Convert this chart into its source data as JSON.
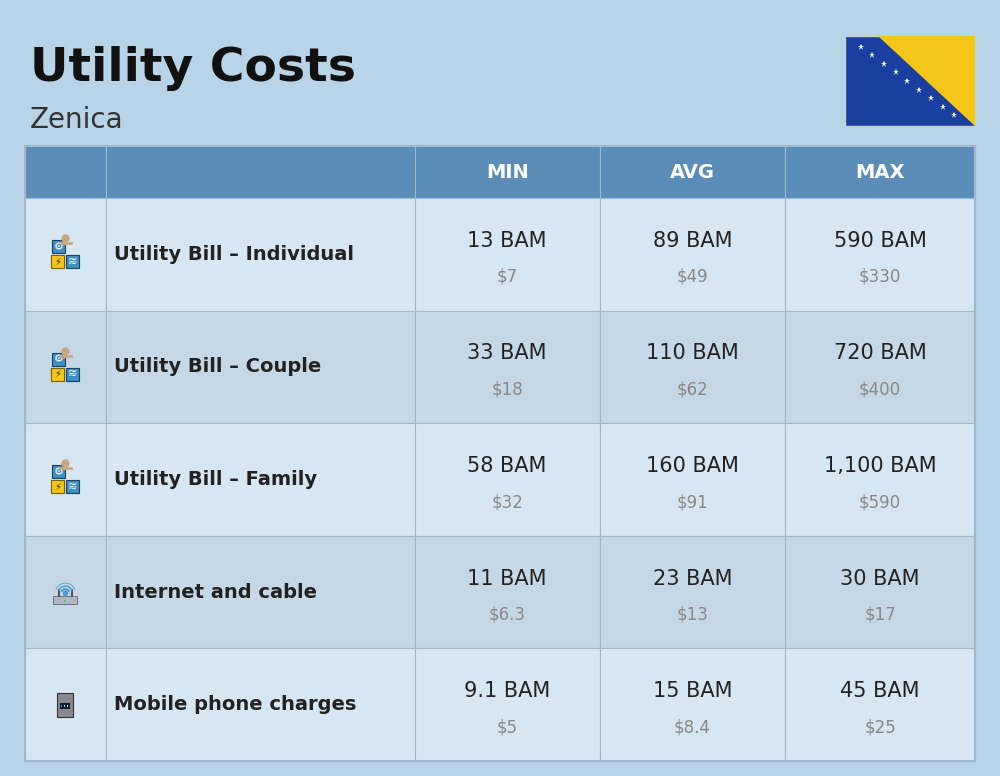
{
  "title": "Utility Costs",
  "subtitle": "Zenica",
  "background_color": "#b8d4e8",
  "header_color": "#5b8db8",
  "header_text_color": "#ffffff",
  "title_color": "#111111",
  "subtitle_color": "#333333",
  "title_fontsize": 34,
  "subtitle_fontsize": 20,
  "columns": [
    "MIN",
    "AVG",
    "MAX"
  ],
  "rows": [
    {
      "label": "Utility Bill – Individual",
      "min_bam": "13 BAM",
      "min_usd": "$7",
      "avg_bam": "89 BAM",
      "avg_usd": "$49",
      "max_bam": "590 BAM",
      "max_usd": "$330"
    },
    {
      "label": "Utility Bill – Couple",
      "min_bam": "33 BAM",
      "min_usd": "$18",
      "avg_bam": "110 BAM",
      "avg_usd": "$62",
      "max_bam": "720 BAM",
      "max_usd": "$400"
    },
    {
      "label": "Utility Bill – Family",
      "min_bam": "58 BAM",
      "min_usd": "$32",
      "avg_bam": "160 BAM",
      "avg_usd": "$91",
      "max_bam": "1,100 BAM",
      "max_usd": "$590"
    },
    {
      "label": "Internet and cable",
      "min_bam": "11 BAM",
      "min_usd": "$6.3",
      "avg_bam": "23 BAM",
      "avg_usd": "$13",
      "max_bam": "30 BAM",
      "max_usd": "$17"
    },
    {
      "label": "Mobile phone charges",
      "min_bam": "9.1 BAM",
      "min_usd": "$5",
      "avg_bam": "15 BAM",
      "avg_usd": "$8.4",
      "max_bam": "45 BAM",
      "max_usd": "$25"
    }
  ],
  "row_even_color": "#d6e6f2",
  "row_odd_color": "#c4d8e8",
  "value_color": "#222222",
  "usd_color": "#888888",
  "value_fontsize": 15,
  "usd_fontsize": 12,
  "label_fontsize": 14,
  "header_fontsize": 14,
  "grid_color": "#a0b8cc",
  "flag_blue": "#1a3fa0",
  "flag_yellow": "#f5c518"
}
